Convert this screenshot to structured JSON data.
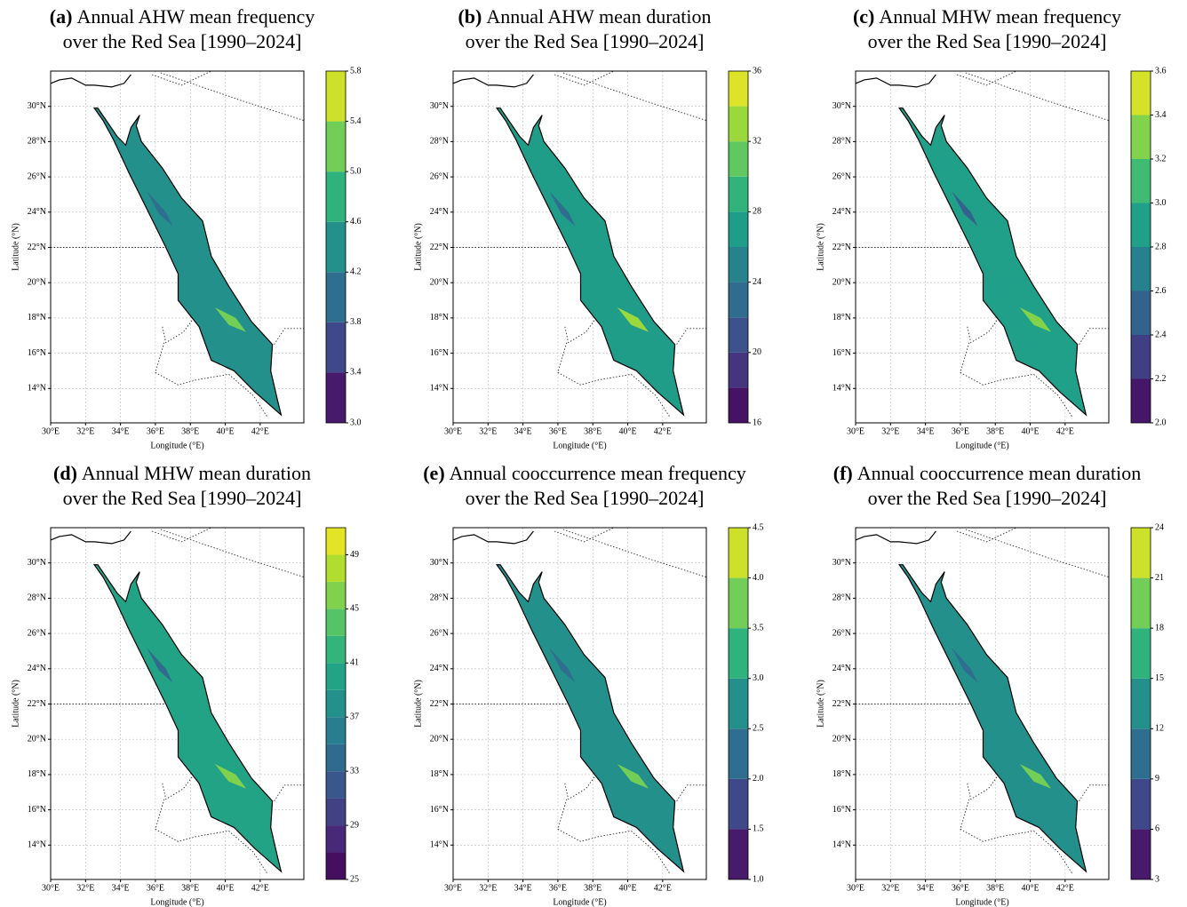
{
  "map": {
    "xlim": [
      30,
      44.5
    ],
    "ylim": [
      12.05,
      32
    ],
    "xticks": [
      {
        "value": 30,
        "label": "30°E"
      },
      {
        "value": 32,
        "label": "32°E"
      },
      {
        "value": 34,
        "label": "34°E"
      },
      {
        "value": 36,
        "label": "36°E"
      },
      {
        "value": 38,
        "label": "38°E"
      },
      {
        "value": 40,
        "label": "40°E"
      },
      {
        "value": 42,
        "label": "42°E"
      }
    ],
    "yticks": [
      {
        "value": 14,
        "label": "14°N"
      },
      {
        "value": 16,
        "label": "16°N"
      },
      {
        "value": 18,
        "label": "18°N"
      },
      {
        "value": 20,
        "label": "20°N"
      },
      {
        "value": 22,
        "label": "22°N"
      },
      {
        "value": 24,
        "label": "24°N"
      },
      {
        "value": 26,
        "label": "26°N"
      },
      {
        "value": 28,
        "label": "28°N"
      },
      {
        "value": 30,
        "label": "30°N"
      }
    ],
    "xlabel": "Longitude (°E)",
    "ylabel": "Latitude (°N)",
    "grid": true,
    "colormap": "viridis"
  },
  "panels": [
    {
      "letter": "(a)",
      "title": "Annual AHW mean frequency",
      "subtitle": "over the Red Sea [1990–2024]",
      "colorbar": {
        "range": [
          3,
          5.8
        ],
        "bands": 7,
        "ticks": [
          {
            "value": 3,
            "label": "3.0"
          },
          3.4,
          3.8,
          4.2,
          4.6,
          {
            "value": 5,
            "label": "5.0"
          },
          5.4,
          5.8
        ]
      }
    },
    {
      "letter": "(b)",
      "title": "Annual AHW mean duration",
      "subtitle": "over the Red Sea [1990–2024]",
      "colorbar": {
        "range": [
          16,
          36
        ],
        "bands": 10,
        "ticks": [
          16,
          20,
          24,
          28,
          32,
          36
        ]
      }
    },
    {
      "letter": "(c)",
      "title": "Annual MHW mean frequency",
      "subtitle": "over the Red Sea [1990–2024]",
      "colorbar": {
        "range": [
          2,
          3.6
        ],
        "bands": 8,
        "ticks": [
          {
            "value": 2,
            "label": "2.0"
          },
          2.2,
          2.4,
          2.6,
          2.8,
          {
            "value": 3,
            "label": "3.0"
          },
          3.2,
          3.4,
          3.6
        ]
      }
    },
    {
      "letter": "(d)",
      "title": "Annual MHW mean duration",
      "subtitle": "over the Red Sea [1990–2024]",
      "colorbar": {
        "range": [
          25,
          51
        ],
        "bands": 13,
        "ticks": [
          25,
          29,
          33,
          37,
          41,
          45,
          49
        ]
      }
    },
    {
      "letter": "(e)",
      "title": "Annual cooccurrence mean frequency",
      "subtitle": "over the Red Sea [1990–2024]",
      "colorbar": {
        "range": [
          1,
          4.5
        ],
        "bands": 7,
        "ticks": [
          {
            "value": 1,
            "label": "1.0"
          },
          1.5,
          {
            "value": 2,
            "label": "2.0"
          },
          2.5,
          {
            "value": 3,
            "label": "3.0"
          },
          3.5,
          {
            "value": 4,
            "label": "4.0"
          },
          4.5
        ]
      }
    },
    {
      "letter": "(f)",
      "title": "Annual cooccurrence mean duration",
      "subtitle": "over the Red Sea [1990–2024]",
      "colorbar": {
        "range": [
          3,
          24
        ],
        "bands": 7,
        "ticks": [
          3,
          6,
          9,
          12,
          15,
          18,
          21,
          24
        ]
      }
    }
  ]
}
